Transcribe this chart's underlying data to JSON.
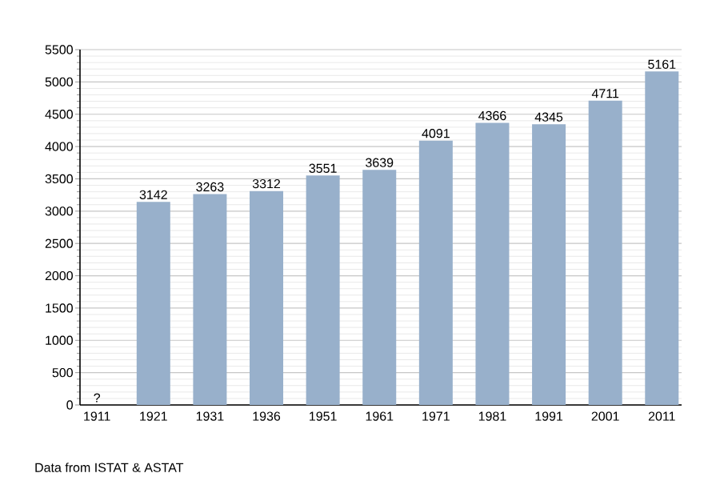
{
  "chart_data": {
    "type": "bar",
    "categories": [
      "1911",
      "1921",
      "1931",
      "1936",
      "1951",
      "1961",
      "1971",
      "1981",
      "1991",
      "2001",
      "2011"
    ],
    "values": [
      null,
      3142,
      3263,
      3312,
      3551,
      3639,
      4091,
      4366,
      4345,
      4711,
      5161
    ],
    "value_labels": [
      "?",
      "3142",
      "3263",
      "3312",
      "3551",
      "3639",
      "4091",
      "4366",
      "4345",
      "4711",
      "5161"
    ],
    "color": "#98b0cb",
    "ylim": [
      0,
      5500
    ],
    "yticks": [
      0,
      500,
      1000,
      1500,
      2000,
      2500,
      3000,
      3500,
      4000,
      4500,
      5000,
      5500
    ],
    "grid": "y",
    "annotations": [
      "Data from ISTAT & ASTAT"
    ]
  }
}
